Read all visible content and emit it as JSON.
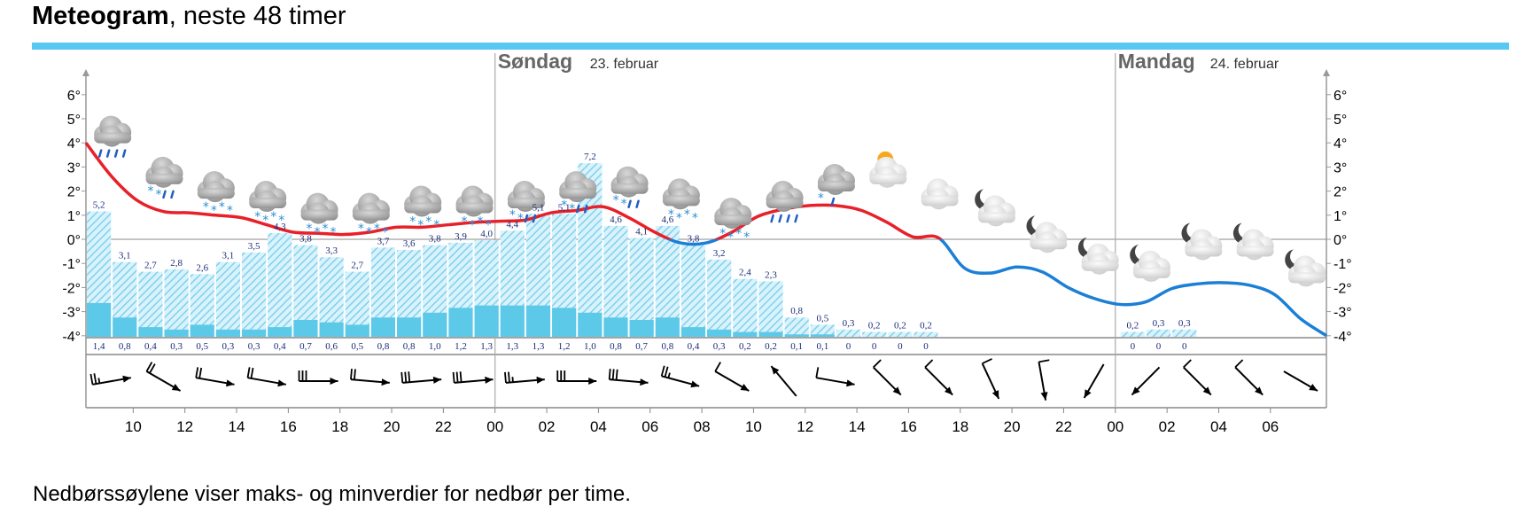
{
  "header": {
    "title_bold": "Meteogram",
    "title_rest": ", neste 48 timer"
  },
  "caption": "Nedbørssøylene viser maks- og minverdier for nedbør per time.",
  "colors": {
    "rule": "#57c8f1",
    "temp_warm": "#e8202a",
    "temp_cold": "#1c7fd6",
    "precip": "#5cc9e8",
    "precip_hatch": "#8ed8ef",
    "wind": "#000000"
  },
  "chart_data": {
    "type": "meteogram",
    "days": [
      {
        "name": "Søndag",
        "date": "23. februar"
      },
      {
        "name": "Mandag",
        "date": "24. februar"
      }
    ],
    "y_ticks": [
      "6°",
      "5°",
      "4°",
      "3°",
      "2°",
      "1°",
      "0°",
      "-1°",
      "-2°",
      "-3°",
      "-4°"
    ],
    "ylim": [
      -4,
      6
    ],
    "x_tick_labels": [
      "10",
      "12",
      "14",
      "16",
      "18",
      "20",
      "22",
      "00",
      "02",
      "04",
      "06",
      "08",
      "10",
      "12",
      "14",
      "16",
      "18",
      "20",
      "22",
      "00",
      "02",
      "04",
      "06"
    ],
    "temperature": {
      "hours_from_start": [
        0,
        1,
        2,
        3,
        4,
        5,
        6,
        7,
        8,
        9,
        10,
        11,
        12,
        13,
        14,
        15,
        16,
        17,
        18,
        19,
        20,
        21,
        22,
        23,
        24,
        25,
        26,
        27,
        28,
        29,
        30,
        31,
        32,
        33,
        34,
        35,
        36,
        37,
        38,
        39,
        40,
        41,
        42,
        43,
        44,
        45,
        46,
        47,
        48
      ],
      "values": [
        4.0,
        2.6,
        1.6,
        1.15,
        1.1,
        1.0,
        0.9,
        0.6,
        0.3,
        0.25,
        0.2,
        0.3,
        0.5,
        0.5,
        0.6,
        0.7,
        0.75,
        0.8,
        1.1,
        1.2,
        1.35,
        0.9,
        0.3,
        -0.15,
        -0.15,
        0.3,
        0.95,
        1.25,
        1.4,
        1.4,
        1.2,
        0.7,
        0.1,
        0.05,
        -1.2,
        -1.4,
        -1.15,
        -1.35,
        -2.0,
        -2.45,
        -2.7,
        -2.6,
        -2.05,
        -1.85,
        -1.8,
        -1.9,
        -2.3,
        -3.3,
        -4.0
      ]
    },
    "precipitation": {
      "max_labels": [
        "5,2",
        "3,1",
        "2,7",
        "2,8",
        "2,6",
        "3,1",
        "3,5",
        "4,3",
        "3,8",
        "3,3",
        "2,7",
        "3,7",
        "3,6",
        "3,8",
        "3,9",
        "4,0",
        "4,4",
        "5,1",
        "5,1",
        "7,2",
        "4,6",
        "4,1",
        "4,6",
        "3,8",
        "3,2",
        "2,4",
        "2,3",
        "0,8",
        "0,5",
        "0,3",
        "0,2",
        "0,2",
        "0,2",
        "",
        "",
        "",
        "",
        "",
        "",
        "",
        "0,2",
        "0,3",
        "0,3",
        "",
        "",
        "",
        "",
        ""
      ],
      "min_labels": [
        "1,4",
        "0,8",
        "0,4",
        "0,3",
        "0,5",
        "0,3",
        "0,3",
        "0,4",
        "0,7",
        "0,6",
        "0,5",
        "0,8",
        "0,8",
        "1,0",
        "1,2",
        "1,3",
        "1,3",
        "1,3",
        "1,2",
        "1,0",
        "0,8",
        "0,7",
        "0,8",
        "0,4",
        "0,3",
        "0,2",
        "0,2",
        "0,1",
        "0,1",
        "0",
        "0",
        "0",
        "0",
        "",
        "",
        "",
        "",
        "",
        "",
        "",
        "0",
        "0",
        "0",
        "",
        "",
        "",
        "",
        ""
      ],
      "max_values": [
        5.2,
        3.1,
        2.7,
        2.8,
        2.6,
        3.1,
        3.5,
        4.3,
        3.8,
        3.3,
        2.7,
        3.7,
        3.6,
        3.8,
        3.9,
        4.0,
        4.4,
        5.1,
        5.1,
        7.2,
        4.6,
        4.1,
        4.6,
        3.8,
        3.2,
        2.4,
        2.3,
        0.8,
        0.5,
        0.3,
        0.2,
        0.2,
        0.2,
        0,
        0,
        0,
        0,
        0,
        0,
        0,
        0.2,
        0.3,
        0.3,
        0,
        0,
        0,
        0,
        0
      ],
      "min_values": [
        1.4,
        0.8,
        0.4,
        0.3,
        0.5,
        0.3,
        0.3,
        0.4,
        0.7,
        0.6,
        0.5,
        0.8,
        0.8,
        1.0,
        1.2,
        1.3,
        1.3,
        1.3,
        1.2,
        1.0,
        0.8,
        0.7,
        0.8,
        0.4,
        0.3,
        0.2,
        0.2,
        0.1,
        0.1,
        0,
        0,
        0,
        0,
        0,
        0,
        0,
        0,
        0,
        0,
        0,
        0,
        0,
        0,
        0,
        0,
        0,
        0,
        0
      ]
    },
    "symbols": [
      {
        "icon": "rain-cloud-icon",
        "hour": 1,
        "y": 4.5
      },
      {
        "icon": "sleet-cloud-icon",
        "hour": 3,
        "y": 2.8
      },
      {
        "icon": "snow-cloud-icon",
        "hour": 5,
        "y": 2.2
      },
      {
        "icon": "snow-cloud-icon",
        "hour": 7,
        "y": 1.8
      },
      {
        "icon": "snow-cloud-icon",
        "hour": 9,
        "y": 1.3
      },
      {
        "icon": "snow-cloud-icon",
        "hour": 11,
        "y": 1.3
      },
      {
        "icon": "snow-cloud-icon",
        "hour": 13,
        "y": 1.6
      },
      {
        "icon": "snow-cloud-icon",
        "hour": 15,
        "y": 1.6
      },
      {
        "icon": "sleet-cloud-icon",
        "hour": 17,
        "y": 1.8
      },
      {
        "icon": "sleet-cloud-icon",
        "hour": 19,
        "y": 2.2
      },
      {
        "icon": "sleet-cloud-icon",
        "hour": 21,
        "y": 2.4
      },
      {
        "icon": "snow-cloud-icon",
        "hour": 23,
        "y": 1.9
      },
      {
        "icon": "snow-cloud-icon",
        "hour": 25,
        "y": 1.1
      },
      {
        "icon": "rain-cloud-icon",
        "hour": 27,
        "y": 1.8
      },
      {
        "icon": "light-snow-cloud-icon",
        "hour": 29,
        "y": 2.5
      },
      {
        "icon": "sun-cloud-icon",
        "hour": 31,
        "y": 2.8
      },
      {
        "icon": "cloud-icon",
        "hour": 33,
        "y": 1.9
      },
      {
        "icon": "moon-cloud-icon",
        "hour": 35,
        "y": 1.2
      },
      {
        "icon": "moon-cloud-icon",
        "hour": 37,
        "y": 0.1
      },
      {
        "icon": "moon-cloud-icon",
        "hour": 39,
        "y": -0.8
      },
      {
        "icon": "moon-cloud-icon",
        "hour": 41,
        "y": -1.1
      },
      {
        "icon": "moon-cloud-icon",
        "hour": 43,
        "y": -0.2
      },
      {
        "icon": "moon-cloud-icon",
        "hour": 45,
        "y": -0.2
      },
      {
        "icon": "moon-cloud-icon",
        "hour": 47,
        "y": -1.3
      }
    ],
    "wind": [
      {
        "dir": 260,
        "barbs": 2.5
      },
      {
        "dir": 300,
        "barbs": 2
      },
      {
        "dir": 280,
        "barbs": 2
      },
      {
        "dir": 280,
        "barbs": 2
      },
      {
        "dir": 270,
        "barbs": 3
      },
      {
        "dir": 275,
        "barbs": 2
      },
      {
        "dir": 265,
        "barbs": 3
      },
      {
        "dir": 265,
        "barbs": 3
      },
      {
        "dir": 265,
        "barbs": 2.5
      },
      {
        "dir": 270,
        "barbs": 3
      },
      {
        "dir": 275,
        "barbs": 3
      },
      {
        "dir": 285,
        "barbs": 2.5
      },
      {
        "dir": 300,
        "barbs": 1
      },
      {
        "dir": 140,
        "barbs": 0
      },
      {
        "dir": 280,
        "barbs": 1
      },
      {
        "dir": 315,
        "barbs": 1
      },
      {
        "dir": 315,
        "barbs": 1
      },
      {
        "dir": 335,
        "barbs": 1
      },
      {
        "dir": 350,
        "barbs": 1
      },
      {
        "dir": 30,
        "barbs": 0
      },
      {
        "dir": 45,
        "barbs": 0
      },
      {
        "dir": 315,
        "barbs": 1
      },
      {
        "dir": 315,
        "barbs": 1
      },
      {
        "dir": 300,
        "barbs": 0
      }
    ]
  }
}
